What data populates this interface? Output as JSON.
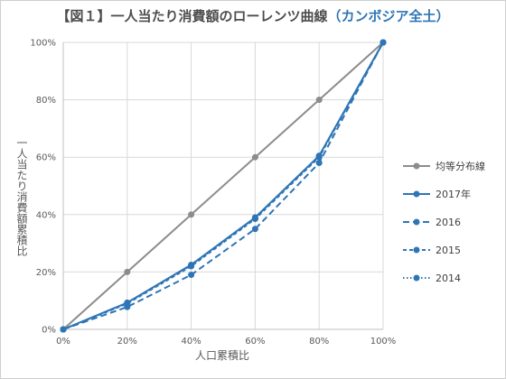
{
  "title": {
    "prefix": "【図１】一人当たり消費額のローレンツ曲線",
    "highlight": "（カンボジア全土）"
  },
  "colors": {
    "equality": "#8c8c8c",
    "series": "#2e75b6",
    "grid": "#d9d9d9",
    "title_accent": "#2e75b6"
  },
  "chart_data": {
    "type": "line",
    "title": "【図１】一人当たり消費額のローレンツ曲線（カンボジア全土）",
    "xlabel": "人口累積比",
    "ylabel": "一人当たり消費額累積比",
    "xlim": [
      0,
      100
    ],
    "ylim": [
      0,
      100
    ],
    "x_ticks": [
      "0%",
      "20%",
      "40%",
      "60%",
      "80%",
      "100%"
    ],
    "y_ticks": [
      "0%",
      "20%",
      "40%",
      "60%",
      "80%",
      "100%"
    ],
    "x": [
      0,
      20,
      40,
      60,
      80,
      100
    ],
    "grid": true,
    "legend_position": "right",
    "series": [
      {
        "name": "均等分布線",
        "values": [
          0,
          20,
          40,
          60,
          80,
          100
        ],
        "style": "solid",
        "color": "#8c8c8c"
      },
      {
        "name": "2017年",
        "values": [
          0,
          9.3,
          22.5,
          39,
          60.5,
          100
        ],
        "style": "solid",
        "color": "#2e75b6"
      },
      {
        "name": "2016",
        "values": [
          0,
          7.8,
          19,
          35,
          58,
          100
        ],
        "style": "dash",
        "color": "#2e75b6"
      },
      {
        "name": "2015",
        "values": [
          0,
          9,
          22,
          38.5,
          60,
          100
        ],
        "style": "shortdash",
        "color": "#2e75b6"
      },
      {
        "name": "2014",
        "values": [
          0,
          9.2,
          22.3,
          38.8,
          60.3,
          100
        ],
        "style": "dot",
        "color": "#2e75b6"
      }
    ]
  }
}
